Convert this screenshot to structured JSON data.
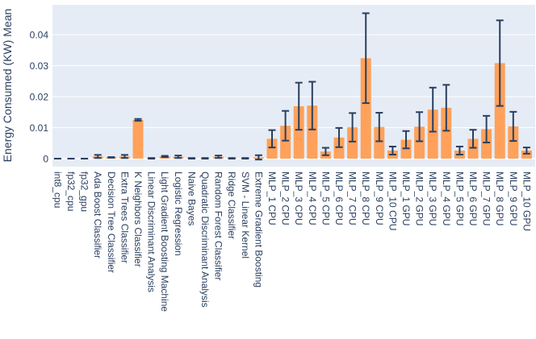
{
  "chart_data": {
    "type": "bar",
    "title": "",
    "xlabel": "",
    "ylabel": "Energy Consumed (KW) Mean",
    "ylim": [
      -0.0025,
      0.049
    ],
    "yticks": [
      0,
      0.01,
      0.02,
      0.03,
      0.04
    ],
    "ytick_labels": [
      "0",
      "0.01",
      "0.02",
      "0.03",
      "0.04"
    ],
    "grid": true,
    "legend": "none",
    "bar_color": "#ffa15a",
    "error_color": "#2a3f5f",
    "background_color": "#e5ecf6",
    "categories": [
      "int8_cpu",
      "fp32_cpu",
      "fp32_gpu",
      "Ada Boost Classifier",
      "Decision Tree Classifier",
      "Extra Trees Classifier",
      "K Neighbors Classifier",
      "Linear Discriminant Analysis",
      "Light Gradient Boosting Machine",
      "Logistic Regression",
      "Naive Bayes",
      "Quadratic Discriminant Analysis",
      "Random Forest Classifier",
      "Ridge Classifier",
      "SVM - Linear Kernel",
      "Extreme Gradient Boosting",
      "MLP_1 CPU",
      "MLP_2 CPU",
      "MLP_3 CPU",
      "MLP_4 CPU",
      "MLP_5 CPU",
      "MLP_6 CPU",
      "MLP_7 CPU",
      "MLP_8 CPU",
      "MLP_9 CPU",
      "MLP_10 CPU",
      "MLP_1 GPU",
      "MLP_2 GPU",
      "MLP_3 GPU",
      "MLP_4 GPU",
      "MLP_5 GPU",
      "MLP_6 GPU",
      "MLP_7 GPU",
      "MLP_8 GPU",
      "MLP_9 GPU",
      "MLP_10 GPU"
    ],
    "values": [
      0.0,
      0.0,
      0.0,
      0.0007,
      0.0004,
      0.0007,
      0.0125,
      0.0001,
      0.0007,
      0.0006,
      0.0001,
      0.0001,
      0.0006,
      0.0001,
      0.0001,
      0.0004,
      0.0064,
      0.0106,
      0.0169,
      0.0171,
      0.0023,
      0.0068,
      0.0101,
      0.0324,
      0.0102,
      0.0026,
      0.0061,
      0.0103,
      0.0158,
      0.0164,
      0.0026,
      0.0064,
      0.0095,
      0.0308,
      0.0104,
      0.0026
    ],
    "errors": [
      0.0,
      0.0,
      0.0,
      0.0005,
      0.0001,
      0.0005,
      0.0003,
      0.0001,
      0.0002,
      0.0004,
      0.0001,
      0.0001,
      0.0004,
      0.0001,
      0.0001,
      0.0007,
      0.0028,
      0.0048,
      0.0076,
      0.0077,
      0.0012,
      0.0031,
      0.0046,
      0.0145,
      0.0046,
      0.0013,
      0.0028,
      0.0047,
      0.0071,
      0.0074,
      0.0013,
      0.0029,
      0.0043,
      0.0138,
      0.0047,
      0.001
    ]
  }
}
